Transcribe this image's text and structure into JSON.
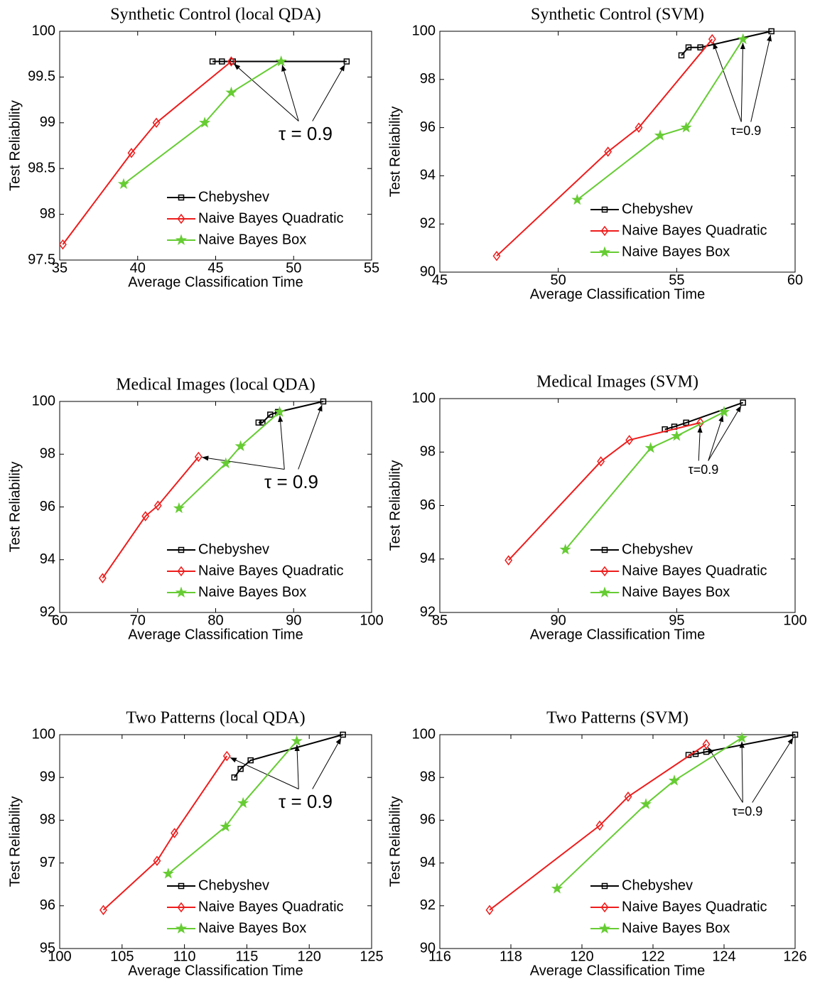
{
  "chart_data": [
    {
      "type": "line",
      "title": "Synthetic Control (local QDA)",
      "x_label": "Average Classification Time",
      "y_label": "Test Reliability",
      "xlim": [
        35,
        55
      ],
      "xticks": [
        35,
        40,
        45,
        50,
        55
      ],
      "ylim": [
        97.5,
        100
      ],
      "yticks": [
        97.5,
        98,
        98.5,
        99,
        99.5,
        100
      ],
      "legend": "lower right",
      "annotation": "τ = 0.9",
      "series": [
        {
          "name": "Chebyshev",
          "color": "#000000",
          "marker": "square",
          "x": [
            44.8,
            45.4,
            46.1,
            53.4
          ],
          "values": [
            99.67,
            99.67,
            99.67,
            99.67
          ]
        },
        {
          "name": "Naive Bayes Quadratic",
          "color": "#ee1c1c",
          "marker": "diamond",
          "x": [
            35.2,
            39.6,
            41.2,
            46.0
          ],
          "values": [
            97.67,
            98.67,
            99,
            99.67
          ]
        },
        {
          "name": "Naive Bayes Box",
          "color": "#66cc33",
          "marker": "star",
          "x": [
            39.1,
            44.3,
            46.0,
            49.2
          ],
          "values": [
            98.33,
            99,
            99.33,
            99.67
          ]
        }
      ]
    },
    {
      "type": "line",
      "title": "Synthetic Control (SVM)",
      "x_label": "Average Classification Time",
      "y_label": "Test Reliability",
      "xlim": [
        45,
        60
      ],
      "xticks": [
        45,
        50,
        55,
        60
      ],
      "ylim": [
        90,
        100
      ],
      "yticks": [
        90,
        92,
        94,
        96,
        98,
        100
      ],
      "legend": "lower right",
      "annotation": "τ=0.9",
      "series": [
        {
          "name": "Chebyshev",
          "color": "#000000",
          "marker": "square",
          "x": [
            55.2,
            55.5,
            56.0,
            59.0
          ],
          "values": [
            99,
            99.33,
            99.33,
            100
          ]
        },
        {
          "name": "Naive Bayes Quadratic",
          "color": "#ee1c1c",
          "marker": "diamond",
          "x": [
            47.4,
            52.1,
            53.4,
            56.5
          ],
          "values": [
            90.67,
            95,
            96,
            99.67
          ]
        },
        {
          "name": "Naive Bayes Box",
          "color": "#66cc33",
          "marker": "star",
          "x": [
            50.8,
            54.3,
            55.4,
            57.8
          ],
          "values": [
            93,
            95.67,
            96,
            99.67
          ]
        }
      ]
    },
    {
      "type": "line",
      "title": "Medical Images (local QDA)",
      "x_label": "Average Classification Time",
      "y_label": "Test Reliability",
      "xlim": [
        60,
        100
      ],
      "xticks": [
        60,
        70,
        80,
        90,
        100
      ],
      "ylim": [
        92,
        100
      ],
      "yticks": [
        92,
        94,
        96,
        98,
        100
      ],
      "legend": "lower right",
      "annotation": "τ = 0.9",
      "series": [
        {
          "name": "Chebyshev",
          "color": "#000000",
          "marker": "square",
          "x": [
            85.5,
            86.0,
            87.0,
            88.0,
            93.8
          ],
          "values": [
            99.2,
            99.2,
            99.5,
            99.6,
            100
          ]
        },
        {
          "name": "Naive Bayes Quadratic",
          "color": "#ee1c1c",
          "marker": "diamond",
          "x": [
            65.5,
            71.0,
            72.6,
            77.8
          ],
          "values": [
            93.3,
            95.65,
            96.05,
            97.9
          ]
        },
        {
          "name": "Naive Bayes Box",
          "color": "#66cc33",
          "marker": "star",
          "x": [
            75.3,
            81.3,
            83.2,
            88.2
          ],
          "values": [
            95.95,
            97.65,
            98.3,
            99.6
          ]
        }
      ]
    },
    {
      "type": "line",
      "title": "Medical Images (SVM)",
      "x_label": "Average Classification Time",
      "y_label": "Test Reliability",
      "xlim": [
        85,
        100
      ],
      "xticks": [
        85,
        90,
        95,
        100
      ],
      "ylim": [
        92,
        100
      ],
      "yticks": [
        92,
        94,
        96,
        98,
        100
      ],
      "legend": "lower right",
      "annotation": "τ=0.9",
      "series": [
        {
          "name": "Chebyshev",
          "color": "#000000",
          "marker": "square",
          "x": [
            94.5,
            94.9,
            95.4,
            97.8
          ],
          "values": [
            98.85,
            98.95,
            99.1,
            99.85
          ]
        },
        {
          "name": "Naive Bayes Quadratic",
          "color": "#ee1c1c",
          "marker": "diamond",
          "x": [
            87.9,
            91.8,
            93.0,
            96.0
          ],
          "values": [
            93.95,
            97.65,
            98.45,
            99.1
          ]
        },
        {
          "name": "Naive Bayes Box",
          "color": "#66cc33",
          "marker": "star",
          "x": [
            90.3,
            93.9,
            95.0,
            97.0
          ],
          "values": [
            94.35,
            98.15,
            98.6,
            99.5
          ]
        }
      ]
    },
    {
      "type": "line",
      "title": "Two Patterns (local QDA)",
      "x_label": "Average Classification Time",
      "y_label": "Test Reliability",
      "xlim": [
        100,
        125
      ],
      "xticks": [
        100,
        105,
        110,
        115,
        120,
        125
      ],
      "ylim": [
        95,
        100
      ],
      "yticks": [
        95,
        96,
        97,
        98,
        99,
        100
      ],
      "legend": "lower right",
      "annotation": "τ = 0.9",
      "series": [
        {
          "name": "Chebyshev",
          "color": "#000000",
          "marker": "square",
          "x": [
            114.0,
            114.5,
            115.3,
            122.7
          ],
          "values": [
            99,
            99.2,
            99.4,
            100
          ]
        },
        {
          "name": "Naive Bayes Quadratic",
          "color": "#ee1c1c",
          "marker": "diamond",
          "x": [
            103.5,
            107.8,
            109.2,
            113.4
          ],
          "values": [
            95.9,
            97.05,
            97.7,
            99.5
          ]
        },
        {
          "name": "Naive Bayes Box",
          "color": "#66cc33",
          "marker": "star",
          "x": [
            108.7,
            113.3,
            114.7,
            119.0
          ],
          "values": [
            96.75,
            97.85,
            98.4,
            99.85
          ]
        }
      ]
    },
    {
      "type": "line",
      "title": "Two Patterns (SVM)",
      "x_label": "Average Classification Time",
      "y_label": "Test Reliability",
      "xlim": [
        116,
        126
      ],
      "xticks": [
        116,
        118,
        120,
        122,
        124,
        126
      ],
      "ylim": [
        90,
        100
      ],
      "yticks": [
        90,
        92,
        94,
        96,
        98,
        100
      ],
      "legend": "lower right",
      "annotation": "τ=0.9",
      "series": [
        {
          "name": "Chebyshev",
          "color": "#000000",
          "marker": "square",
          "x": [
            123.0,
            123.2,
            123.5,
            126.0
          ],
          "values": [
            99.05,
            99.1,
            99.2,
            100
          ]
        },
        {
          "name": "Naive Bayes Quadratic",
          "color": "#ee1c1c",
          "marker": "diamond",
          "x": [
            117.4,
            120.5,
            121.3,
            123.5
          ],
          "values": [
            91.8,
            95.75,
            97.1,
            99.55
          ]
        },
        {
          "name": "Naive Bayes Box",
          "color": "#66cc33",
          "marker": "star",
          "x": [
            119.3,
            121.8,
            122.6,
            124.5
          ],
          "values": [
            92.8,
            96.75,
            97.85,
            99.85
          ]
        }
      ]
    }
  ]
}
